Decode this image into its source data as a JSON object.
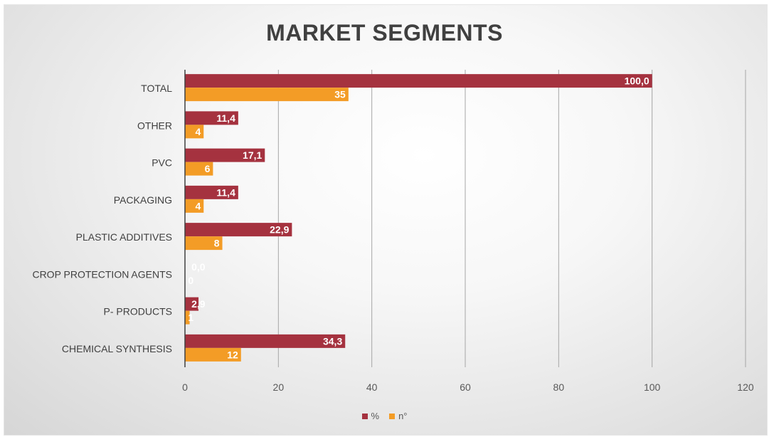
{
  "chart_data": {
    "type": "bar",
    "orientation": "horizontal",
    "title": "MARKET SEGMENTS",
    "categories": [
      "TOTAL",
      "OTHER",
      "PVC",
      "PACKAGING",
      "PLASTIC ADDITIVES",
      "CROP PROTECTION AGENTS",
      "P- PRODUCTS",
      "CHEMICAL SYNTHESIS"
    ],
    "series": [
      {
        "name": "%",
        "color": "#a5323f",
        "values": [
          100.0,
          11.4,
          17.1,
          11.4,
          22.9,
          0.0,
          2.9,
          34.3
        ],
        "labels": [
          "100,0",
          "11,4",
          "17,1",
          "11,4",
          "22,9",
          "0,0",
          "2,9",
          "34,3"
        ]
      },
      {
        "name": "n°",
        "color": "#f39c26",
        "values": [
          35,
          4,
          6,
          4,
          8,
          0,
          1,
          12
        ],
        "labels": [
          "35",
          "4",
          "6",
          "4",
          "8",
          "0",
          "1",
          "12"
        ]
      }
    ],
    "xlim": [
      0,
      120
    ],
    "xticks": [
      0,
      20,
      40,
      60,
      80,
      100,
      120
    ],
    "grid": true,
    "legend": "bottom",
    "data_labels": "inside-end"
  }
}
